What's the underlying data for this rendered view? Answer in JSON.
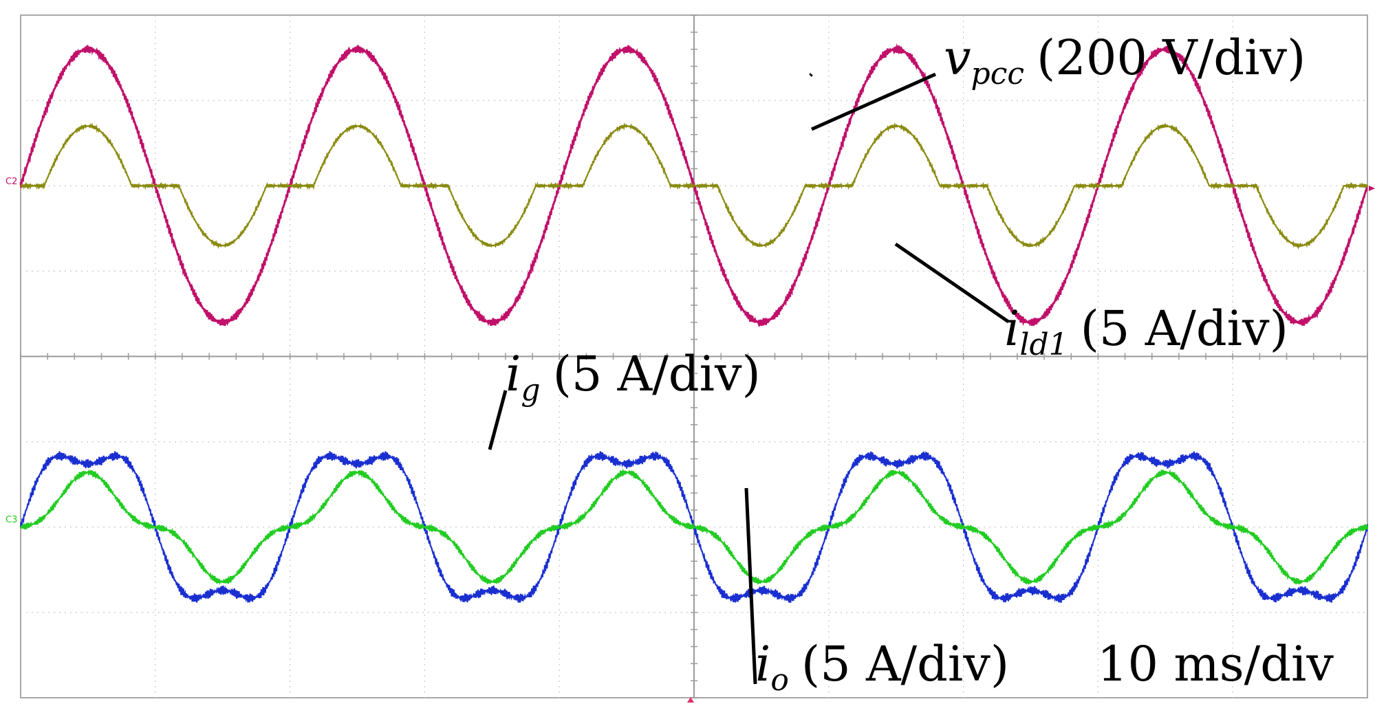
{
  "chart_data": {
    "type": "line",
    "x_unit_label": "10 ms/div",
    "x_divisions": 10,
    "y_divisions": 8,
    "x_ms_range": [
      0,
      100
    ],
    "frequency_hz": 50,
    "channel_markers": [
      "C2",
      "C3"
    ],
    "series": [
      {
        "name": "v_pcc",
        "symbol": "v",
        "subscript": "pcc",
        "scale": "(200 V/div)",
        "color": "#c0106a",
        "offset_div": 2,
        "amplitude_div": 1.6,
        "waveform": "sine"
      },
      {
        "name": "i_ld1",
        "symbol": "i",
        "subscript": "ld1",
        "scale": "(5 A/div)",
        "color": "#8a8a10",
        "offset_div": 2,
        "amplitude_div": 0.7,
        "waveform": "rectifier-load current"
      },
      {
        "name": "i_g",
        "symbol": "i",
        "subscript": "g",
        "scale": "(5 A/div)",
        "color": "#1a2fd0",
        "offset_div": -2,
        "amplitude_div": 0.95,
        "waveform": "distorted"
      },
      {
        "name": "i_o",
        "symbol": "i",
        "subscript": "o",
        "scale": "(5 A/div)",
        "color": "#22cc22",
        "offset_div": -2,
        "amplitude_div": 0.5,
        "waveform": "distorted"
      }
    ]
  }
}
